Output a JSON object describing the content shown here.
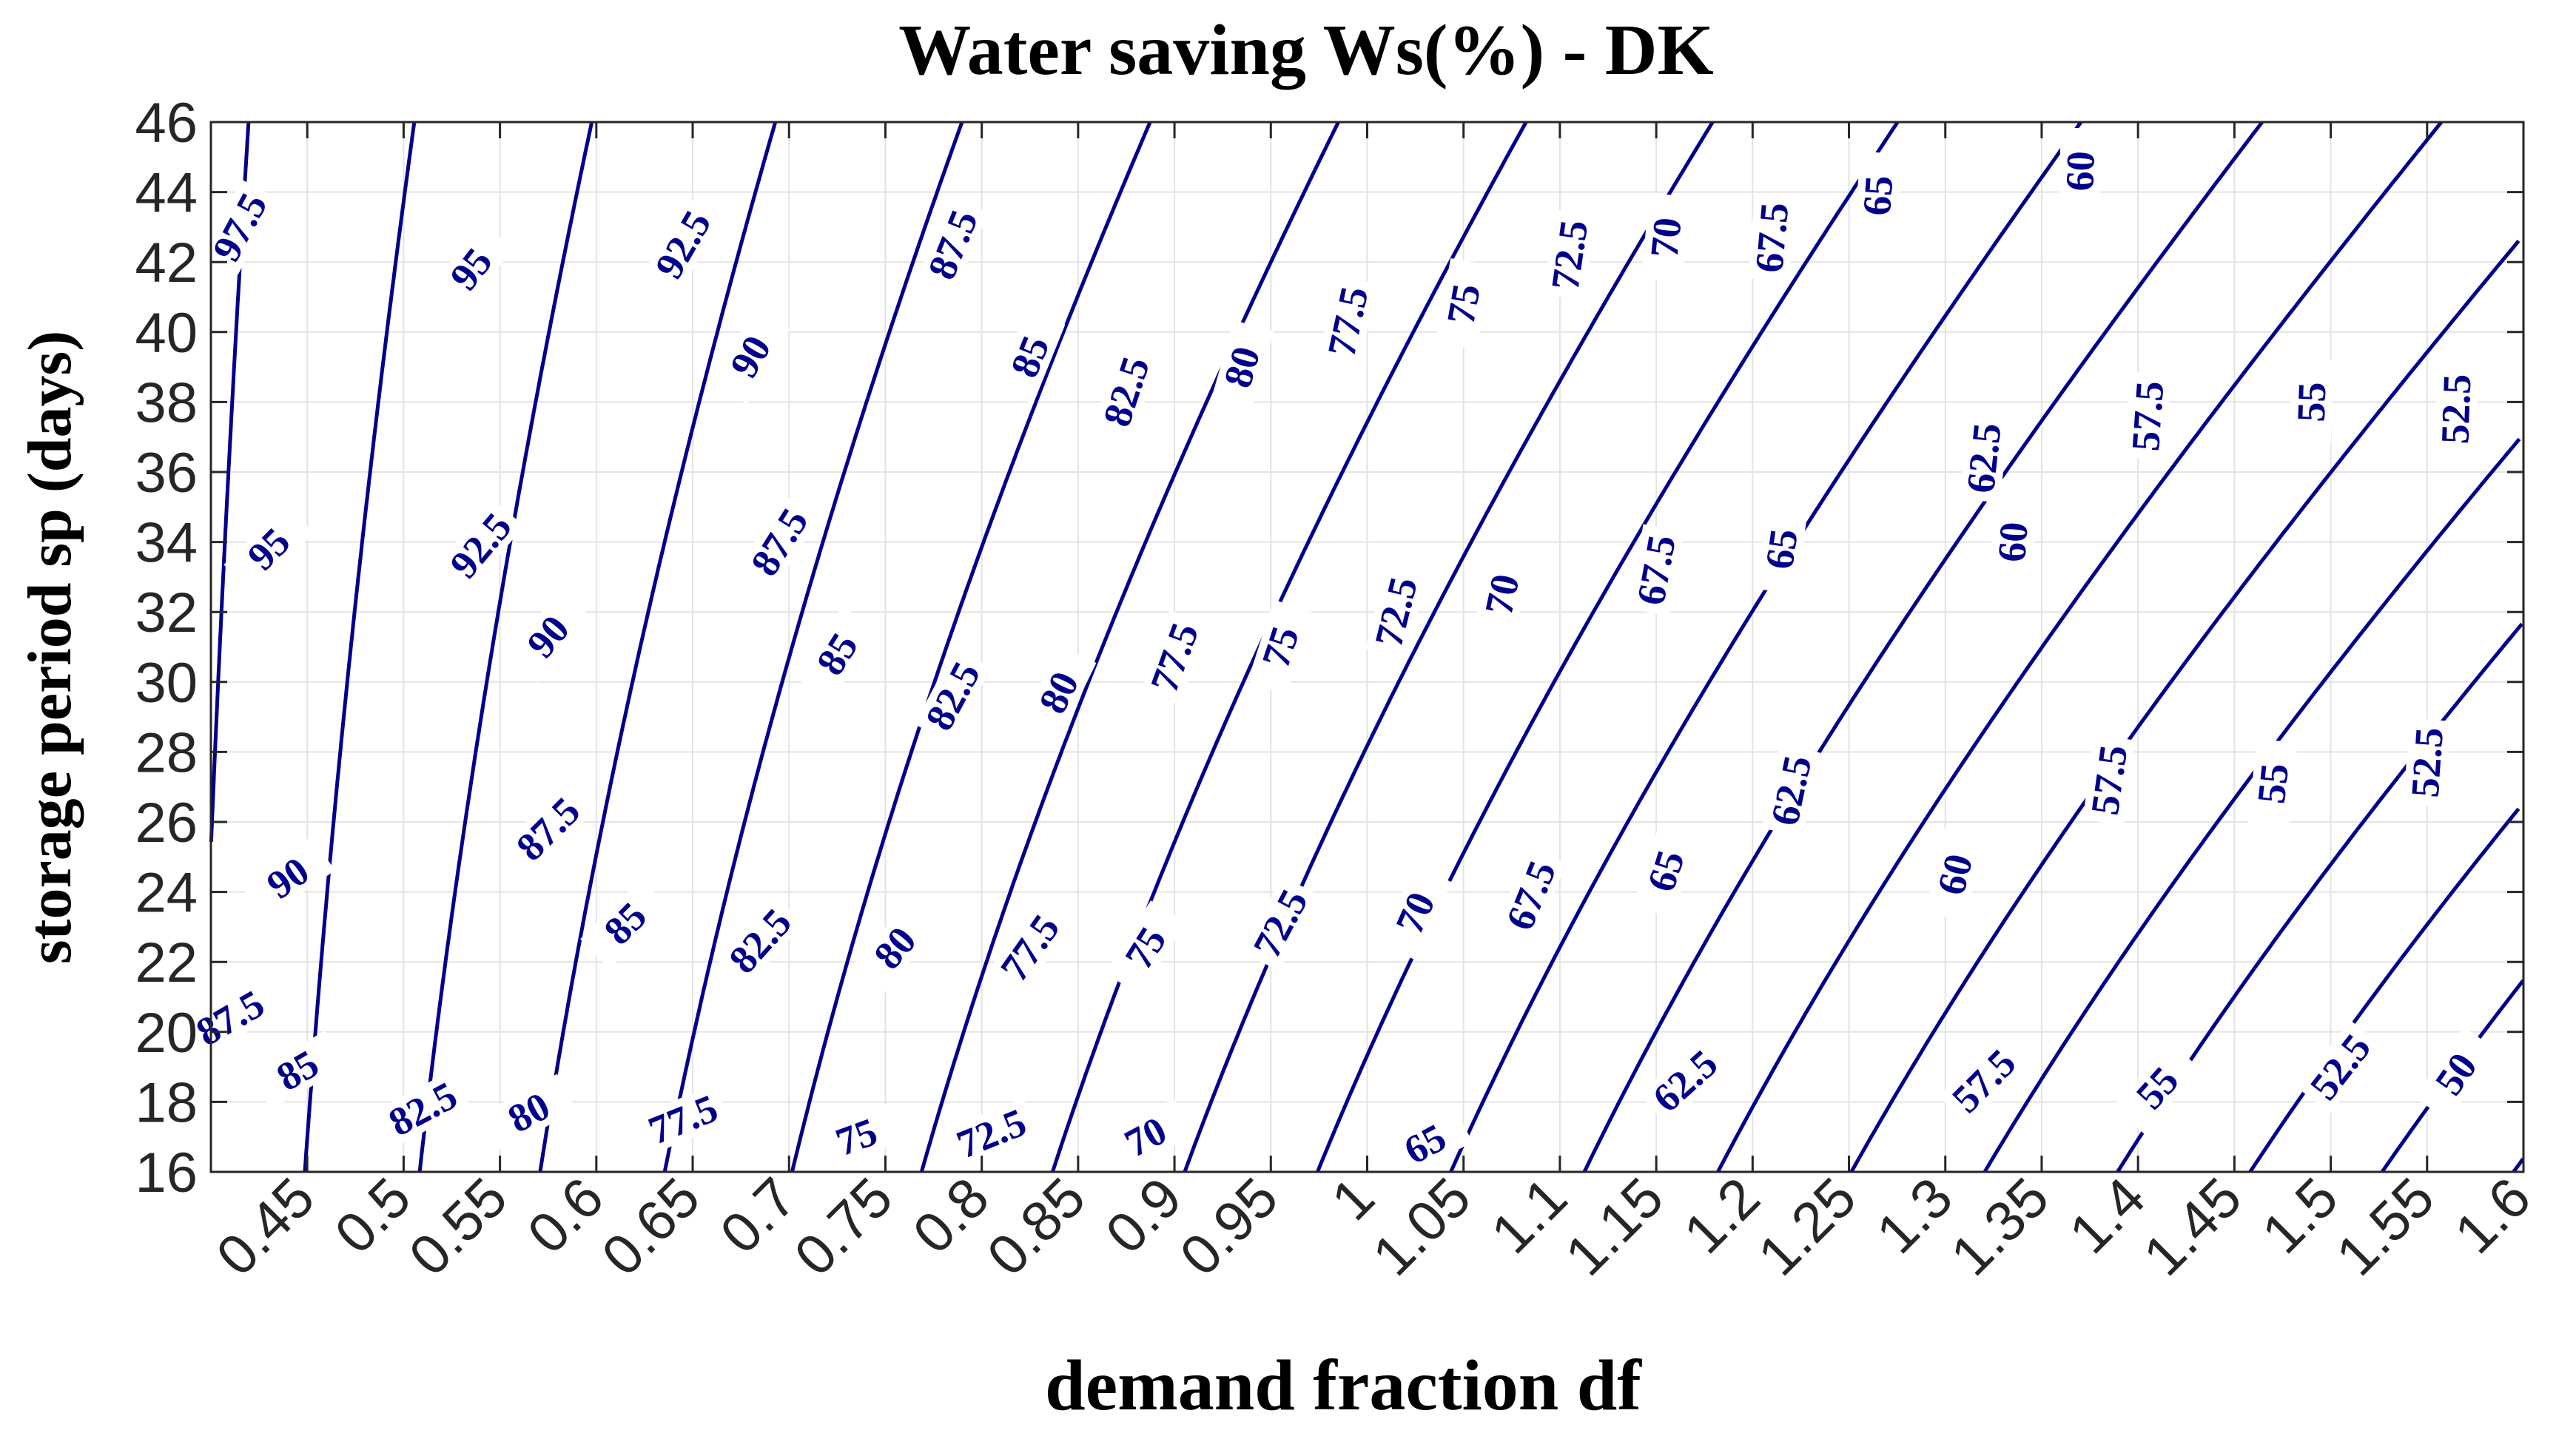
{
  "chart_data": {
    "type": "contour",
    "title": "Water saving  Ws(%) - DK",
    "xlabel": "demand fraction df",
    "ylabel": "storage period sp (days)",
    "xlim": [
      0.4,
      1.6
    ],
    "ylim": [
      16,
      46
    ],
    "x_ticks": [
      "0.45",
      "0.5",
      "0.55",
      "0.6",
      "0.65",
      "0.7",
      "0.75",
      "0.8",
      "0.85",
      "0.9",
      "0.95",
      "1",
      "1.05",
      "1.1",
      "1.15",
      "1.2",
      "1.25",
      "1.3",
      "1.35",
      "1.4",
      "1.45",
      "1.5",
      "1.55",
      "1.6"
    ],
    "y_ticks": [
      "16",
      "18",
      "20",
      "22",
      "24",
      "26",
      "28",
      "30",
      "32",
      "34",
      "36",
      "38",
      "40",
      "42",
      "44",
      "46"
    ],
    "grid": true,
    "line_color": "#00008b",
    "label_color": "#00008b",
    "levels": [
      50,
      52.5,
      55,
      57.5,
      60,
      62.5,
      65,
      67.5,
      70,
      72.5,
      75,
      77.5,
      80,
      82.5,
      85,
      87.5,
      90,
      92.5,
      95,
      97.5
    ],
    "contour_labels": [
      {
        "text": "97.5",
        "x": 0.415,
        "y": 43.0,
        "rot": -62
      },
      {
        "text": "95",
        "x": 0.535,
        "y": 41.8,
        "rot": -52
      },
      {
        "text": "92.5",
        "x": 0.645,
        "y": 42.5,
        "rot": -60
      },
      {
        "text": "87.5",
        "x": 0.785,
        "y": 42.5,
        "rot": -68
      },
      {
        "text": "90",
        "x": 0.68,
        "y": 39.3,
        "rot": -60
      },
      {
        "text": "85",
        "x": 0.825,
        "y": 39.3,
        "rot": -68
      },
      {
        "text": "82.5",
        "x": 0.875,
        "y": 38.3,
        "rot": -72
      },
      {
        "text": "80",
        "x": 0.935,
        "y": 39.0,
        "rot": -74
      },
      {
        "text": "77.5",
        "x": 0.99,
        "y": 40.3,
        "rot": -78
      },
      {
        "text": "75",
        "x": 1.05,
        "y": 40.8,
        "rot": -80
      },
      {
        "text": "72.5",
        "x": 1.105,
        "y": 42.2,
        "rot": -82
      },
      {
        "text": "70",
        "x": 1.155,
        "y": 42.7,
        "rot": -84
      },
      {
        "text": "67.5",
        "x": 1.21,
        "y": 42.7,
        "rot": -85
      },
      {
        "text": "65",
        "x": 1.265,
        "y": 43.9,
        "rot": -86
      },
      {
        "text": "60",
        "x": 1.37,
        "y": 44.6,
        "rot": -88
      },
      {
        "text": "62.5",
        "x": 1.32,
        "y": 36.4,
        "rot": -84
      },
      {
        "text": "57.5",
        "x": 1.405,
        "y": 37.6,
        "rot": -86
      },
      {
        "text": "55",
        "x": 1.49,
        "y": 38.0,
        "rot": -88
      },
      {
        "text": "52.5",
        "x": 1.565,
        "y": 37.8,
        "rot": -88
      },
      {
        "text": "95",
        "x": 0.43,
        "y": 33.8,
        "rot": -45
      },
      {
        "text": "92.5",
        "x": 0.54,
        "y": 33.9,
        "rot": -50
      },
      {
        "text": "87.5",
        "x": 0.695,
        "y": 34.0,
        "rot": -58
      },
      {
        "text": "90",
        "x": 0.575,
        "y": 31.3,
        "rot": -50
      },
      {
        "text": "85",
        "x": 0.725,
        "y": 30.8,
        "rot": -58
      },
      {
        "text": "82.5",
        "x": 0.785,
        "y": 29.6,
        "rot": -62
      },
      {
        "text": "80",
        "x": 0.84,
        "y": 29.7,
        "rot": -64
      },
      {
        "text": "77.5",
        "x": 0.9,
        "y": 30.7,
        "rot": -70
      },
      {
        "text": "75",
        "x": 0.955,
        "y": 31.0,
        "rot": -72
      },
      {
        "text": "72.5",
        "x": 1.015,
        "y": 32.0,
        "rot": -76
      },
      {
        "text": "70",
        "x": 1.07,
        "y": 32.5,
        "rot": -78
      },
      {
        "text": "67.5",
        "x": 1.15,
        "y": 33.2,
        "rot": -80
      },
      {
        "text": "65",
        "x": 1.215,
        "y": 33.8,
        "rot": -82
      },
      {
        "text": "60",
        "x": 1.335,
        "y": 34.0,
        "rot": -86
      },
      {
        "text": "62.5",
        "x": 1.22,
        "y": 26.9,
        "rot": -78
      },
      {
        "text": "57.5",
        "x": 1.385,
        "y": 27.2,
        "rot": -82
      },
      {
        "text": "55",
        "x": 1.47,
        "y": 27.1,
        "rot": -84
      },
      {
        "text": "52.5",
        "x": 1.55,
        "y": 27.7,
        "rot": -86
      },
      {
        "text": "90",
        "x": 0.44,
        "y": 24.4,
        "rot": -35
      },
      {
        "text": "87.5",
        "x": 0.575,
        "y": 25.8,
        "rot": -45
      },
      {
        "text": "85",
        "x": 0.615,
        "y": 23.1,
        "rot": -45
      },
      {
        "text": "82.5",
        "x": 0.685,
        "y": 22.6,
        "rot": -48
      },
      {
        "text": "80",
        "x": 0.755,
        "y": 22.4,
        "rot": -50
      },
      {
        "text": "77.5",
        "x": 0.825,
        "y": 22.4,
        "rot": -55
      },
      {
        "text": "75",
        "x": 0.885,
        "y": 22.4,
        "rot": -58
      },
      {
        "text": "72.5",
        "x": 0.955,
        "y": 23.1,
        "rot": -62
      },
      {
        "text": "70",
        "x": 1.025,
        "y": 23.4,
        "rot": -66
      },
      {
        "text": "67.5",
        "x": 1.085,
        "y": 23.9,
        "rot": -68
      },
      {
        "text": "65",
        "x": 1.155,
        "y": 24.6,
        "rot": -72
      },
      {
        "text": "60",
        "x": 1.305,
        "y": 24.5,
        "rot": -76
      },
      {
        "text": "87.5",
        "x": 0.41,
        "y": 20.4,
        "rot": -30
      },
      {
        "text": "85",
        "x": 0.445,
        "y": 18.9,
        "rot": -30
      },
      {
        "text": "82.5",
        "x": 0.51,
        "y": 17.8,
        "rot": -28
      },
      {
        "text": "80",
        "x": 0.565,
        "y": 17.7,
        "rot": -28
      },
      {
        "text": "77.5",
        "x": 0.645,
        "y": 17.5,
        "rot": -22
      },
      {
        "text": "75",
        "x": 0.735,
        "y": 17.0,
        "rot": -20
      },
      {
        "text": "72.5",
        "x": 0.805,
        "y": 17.1,
        "rot": -22
      },
      {
        "text": "70",
        "x": 0.885,
        "y": 17.0,
        "rot": -28
      },
      {
        "text": "65",
        "x": 1.03,
        "y": 16.8,
        "rot": -28
      },
      {
        "text": "62.5",
        "x": 1.165,
        "y": 18.6,
        "rot": -42
      },
      {
        "text": "57.5",
        "x": 1.32,
        "y": 18.6,
        "rot": -45
      },
      {
        "text": "55",
        "x": 1.41,
        "y": 18.4,
        "rot": -48
      },
      {
        "text": "52.5",
        "x": 1.505,
        "y": 19.0,
        "rot": -52
      },
      {
        "text": "50",
        "x": 1.565,
        "y": 18.8,
        "rot": -55
      }
    ]
  }
}
